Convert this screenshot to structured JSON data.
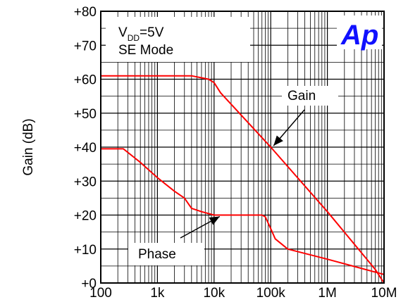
{
  "chart_data": {
    "type": "line",
    "ylabel": "Gain (dB)",
    "x_scale": "log",
    "xlim": [
      100,
      10000000
    ],
    "ylim": [
      0,
      80
    ],
    "x_ticks": [
      "100",
      "1k",
      "10k",
      "100k",
      "1M",
      "10M"
    ],
    "y_ticks": [
      "+0",
      "+10",
      "+20",
      "+30",
      "+40",
      "+50",
      "+60",
      "+70",
      "+80"
    ],
    "grid": true,
    "series_color": "#ff0000",
    "series": [
      {
        "name": "Gain",
        "x": [
          100,
          1000,
          4000,
          8000,
          10000,
          13000,
          100000,
          1000000,
          7000000,
          10000000
        ],
        "y": [
          61,
          61,
          61,
          60,
          59,
          56,
          40,
          21,
          4,
          0
        ]
      },
      {
        "name": "Phase",
        "x": [
          100,
          250,
          500,
          1000,
          2000,
          3000,
          4000,
          6000,
          10000,
          15000,
          30000,
          70000,
          80000,
          100000,
          120000,
          200000,
          1000000,
          10000000,
          15000000
        ],
        "y": [
          39.5,
          39.5,
          35.5,
          31,
          27,
          25,
          22,
          21,
          20,
          20,
          20,
          20,
          19.5,
          16,
          13,
          10,
          7,
          2.5,
          1.5
        ]
      }
    ],
    "annotations": {
      "condition_main": "V",
      "condition_sub": "DD",
      "condition_value": "=5V",
      "mode": "SE Mode",
      "gain_label": "Gain",
      "phase_label": "Phase"
    },
    "logo_text": "Ap",
    "logo_color": "#1010ff"
  }
}
